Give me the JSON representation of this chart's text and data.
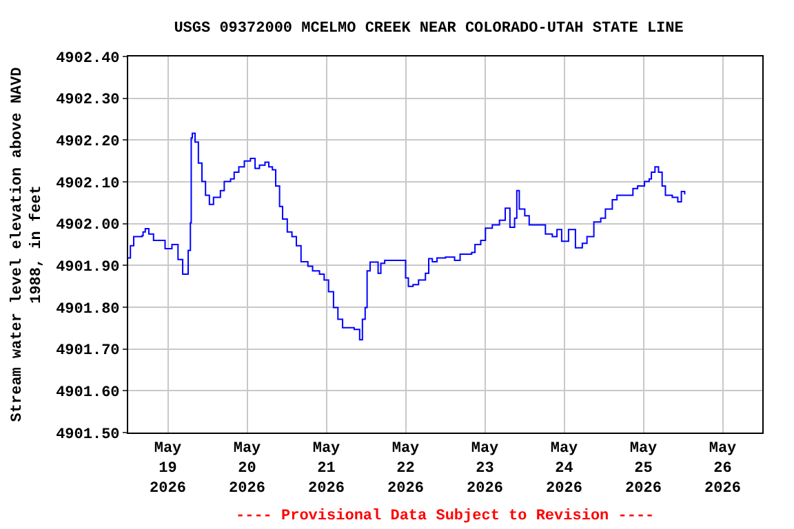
{
  "chart_data": {
    "type": "step",
    "title": "USGS 09372000 MCELMO CREEK NEAR COLORADO-UTAH STATE LINE",
    "ylabel": "Stream water level elevation above NAVD\n1988, in feet",
    "annotations": [
      "---- Provisional Data Subject to Revision ----"
    ],
    "x": [
      "2026-05-18T12:00",
      "2026-05-18T12:40",
      "2026-05-18T13:40",
      "2026-05-18T16:10",
      "2026-05-18T16:30",
      "2026-05-18T17:10",
      "2026-05-18T18:15",
      "2026-05-18T19:40",
      "2026-05-18T23:10",
      "2026-05-19T01:15",
      "2026-05-19T02:15",
      "2026-05-19T03:05",
      "2026-05-19T04:30",
      "2026-05-19T05:25",
      "2026-05-19T06:10",
      "2026-05-19T06:50",
      "2026-05-19T07:05",
      "2026-05-19T07:25",
      "2026-05-19T08:15",
      "2026-05-19T09:15",
      "2026-05-19T10:20",
      "2026-05-19T11:25",
      "2026-05-19T12:35",
      "2026-05-19T13:50",
      "2026-05-19T15:55",
      "2026-05-19T17:05",
      "2026-05-19T19:00",
      "2026-05-19T20:05",
      "2026-05-19T21:30",
      "2026-05-19T23:10",
      "2026-05-20T01:00",
      "2026-05-20T02:25",
      "2026-05-20T03:45",
      "2026-05-20T05:25",
      "2026-05-20T06:35",
      "2026-05-20T07:40",
      "2026-05-20T08:40",
      "2026-05-20T09:50",
      "2026-05-20T10:45",
      "2026-05-20T12:10",
      "2026-05-20T13:35",
      "2026-05-20T14:55",
      "2026-05-20T16:20",
      "2026-05-20T18:25",
      "2026-05-20T19:50",
      "2026-05-20T21:15",
      "2026-05-20T21:55",
      "2026-05-20T23:20",
      "2026-05-21T00:40",
      "2026-05-21T02:10",
      "2026-05-21T03:30",
      "2026-05-21T04:55",
      "2026-05-21T07:00",
      "2026-05-21T08:25",
      "2026-05-21T10:05",
      "2026-05-21T10:55",
      "2026-05-21T11:45",
      "2026-05-21T12:20",
      "2026-05-21T13:15",
      "2026-05-21T15:05",
      "2026-05-21T15:40",
      "2026-05-21T16:30",
      "2026-05-21T17:40",
      "2026-05-21T23:05",
      "2026-05-22T00:00",
      "2026-05-22T00:50",
      "2026-05-22T02:15",
      "2026-05-22T03:55",
      "2026-05-22T06:00",
      "2026-05-22T07:00",
      "2026-05-22T08:05",
      "2026-05-22T09:30",
      "2026-05-22T12:05",
      "2026-05-22T14:50",
      "2026-05-22T16:30",
      "2026-05-22T20:00",
      "2026-05-22T21:00",
      "2026-05-22T22:45",
      "2026-05-23T00:10",
      "2026-05-23T02:15",
      "2026-05-23T04:25",
      "2026-05-23T06:10",
      "2026-05-23T07:35",
      "2026-05-23T09:00",
      "2026-05-23T09:40",
      "2026-05-23T10:25",
      "2026-05-23T12:05",
      "2026-05-23T13:25",
      "2026-05-23T16:55",
      "2026-05-23T18:20",
      "2026-05-23T20:25",
      "2026-05-23T21:50",
      "2026-05-23T23:15",
      "2026-05-24T01:20",
      "2026-05-24T03:25",
      "2026-05-24T05:30",
      "2026-05-24T06:55",
      "2026-05-24T09:00",
      "2026-05-24T11:05",
      "2026-05-24T12:30",
      "2026-05-24T14:35",
      "2026-05-24T16:00",
      "2026-05-24T18:45",
      "2026-05-24T20:50",
      "2026-05-24T22:15",
      "2026-05-25T00:20",
      "2026-05-25T01:45",
      "2026-05-25T02:25",
      "2026-05-25T03:30",
      "2026-05-25T04:35",
      "2026-05-25T05:40",
      "2026-05-25T06:40",
      "2026-05-25T08:45",
      "2026-05-25T10:25",
      "2026-05-25T11:30",
      "2026-05-25T12:30"
    ],
    "series": [
      {
        "color": "#0000ff",
        "values": [
          4901.918,
          4901.947,
          4901.969,
          4901.971,
          4901.98,
          4901.988,
          4901.975,
          4901.96,
          4901.94,
          4901.95,
          4901.95,
          4901.914,
          4901.879,
          4901.879,
          4901.936,
          4902.002,
          4902.205,
          4902.216,
          4902.195,
          4902.145,
          4902.101,
          4902.068,
          4902.046,
          4902.063,
          4902.079,
          4902.101,
          4902.107,
          4902.123,
          4902.136,
          4902.15,
          4902.156,
          4902.132,
          4902.14,
          4902.147,
          4902.136,
          4902.129,
          4902.09,
          4902.041,
          4902.011,
          4901.98,
          4901.969,
          4901.947,
          4901.909,
          4901.898,
          4901.887,
          4901.887,
          4901.879,
          4901.865,
          4901.837,
          4901.799,
          4901.771,
          4901.751,
          4901.751,
          4901.747,
          4901.722,
          4901.771,
          4901.799,
          4901.887,
          4901.908,
          4901.908,
          4901.881,
          4901.905,
          4901.912,
          4901.912,
          4901.87,
          4901.85,
          4901.854,
          4901.865,
          4901.881,
          4901.916,
          4901.909,
          4901.918,
          4901.92,
          4901.912,
          4901.927,
          4901.931,
          4901.95,
          4901.96,
          4901.989,
          4901.997,
          4902.008,
          4902.037,
          4901.991,
          4902.013,
          4902.079,
          4902.035,
          4902.019,
          4901.997,
          4901.997,
          4901.975,
          4901.969,
          4901.986,
          4901.958,
          4901.986,
          4901.942,
          4901.953,
          4901.969,
          4902.004,
          4902.013,
          4902.035,
          4902.057,
          4902.068,
          4902.068,
          4902.084,
          4902.09,
          4902.101,
          4902.107,
          4902.123,
          4902.136,
          4902.123,
          4902.09,
          4902.068,
          4902.063,
          4902.052,
          4902.077,
          4902.07
        ]
      }
    ],
    "xlim": [
      "2026-05-18T12:00",
      "2026-05-26T12:00"
    ],
    "xticks": [
      {
        "value": "2026-05-19",
        "label": "May\n19\n2026"
      },
      {
        "value": "2026-05-20",
        "label": "May\n20\n2026"
      },
      {
        "value": "2026-05-21",
        "label": "May\n21\n2026"
      },
      {
        "value": "2026-05-22",
        "label": "May\n22\n2026"
      },
      {
        "value": "2026-05-23",
        "label": "May\n23\n2026"
      },
      {
        "value": "2026-05-24",
        "label": "May\n24\n2026"
      },
      {
        "value": "2026-05-25",
        "label": "May\n25\n2026"
      },
      {
        "value": "2026-05-26",
        "label": "May\n26\n2026"
      }
    ],
    "ylim": [
      4901.5,
      4902.4
    ],
    "yticks": [
      {
        "value": 4901.5,
        "label": "4901.50"
      },
      {
        "value": 4901.6,
        "label": "4901.60"
      },
      {
        "value": 4901.7,
        "label": "4901.70"
      },
      {
        "value": 4901.8,
        "label": "4901.80"
      },
      {
        "value": 4901.9,
        "label": "4901.90"
      },
      {
        "value": 4902.0,
        "label": "4902.00"
      },
      {
        "value": 4902.1,
        "label": "4902.10"
      },
      {
        "value": 4902.2,
        "label": "4902.20"
      },
      {
        "value": 4902.3,
        "label": "4902.30"
      },
      {
        "value": 4902.4,
        "label": "4902.40"
      }
    ],
    "grid": true,
    "line_style": "solid",
    "marker": "none"
  }
}
